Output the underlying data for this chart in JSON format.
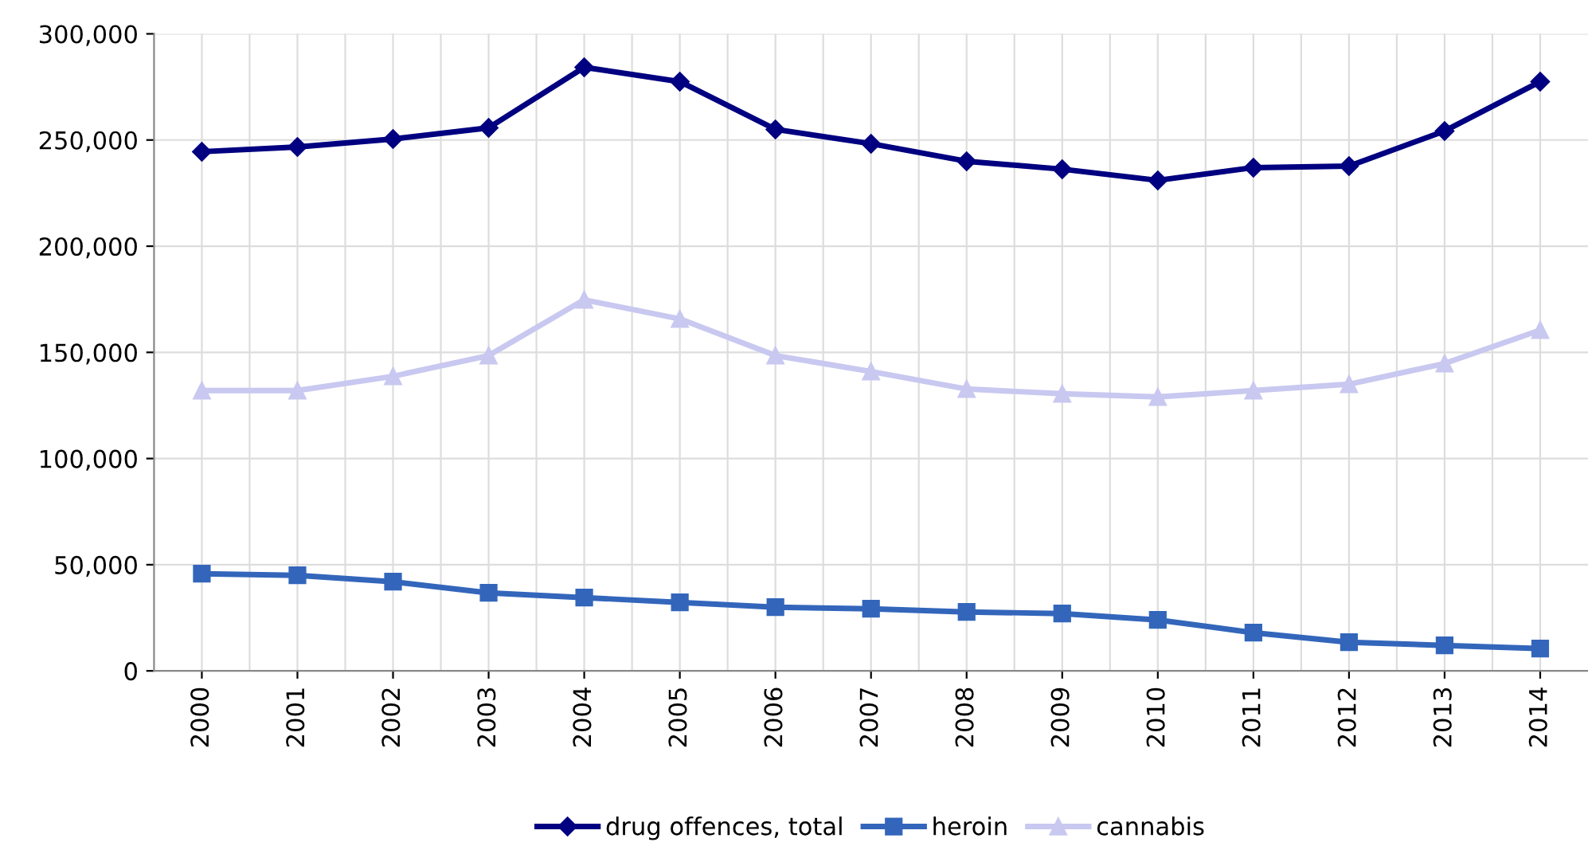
{
  "chart_data": {
    "type": "line",
    "categories": [
      "2000",
      "2001",
      "2002",
      "2003",
      "2004",
      "2005",
      "2006",
      "2007",
      "2008",
      "2009",
      "2010",
      "2011",
      "2012",
      "2013",
      "2014"
    ],
    "series": [
      {
        "name": "drug offences, total",
        "color": "#000080",
        "marker": "diamond",
        "values": [
          244500,
          246750,
          250500,
          255750,
          284250,
          277500,
          255000,
          248250,
          240000,
          236250,
          231000,
          237000,
          237750,
          254250,
          277500
        ]
      },
      {
        "name": "heroin",
        "color": "#3366bb",
        "marker": "square",
        "values": [
          45750,
          45000,
          42000,
          36750,
          34500,
          32250,
          30000,
          29250,
          27750,
          27000,
          24000,
          18000,
          13500,
          12000,
          10500
        ]
      },
      {
        "name": "cannabis",
        "color": "#c8c8f0",
        "marker": "triangle",
        "values": [
          132000,
          132000,
          138750,
          148500,
          174750,
          165750,
          148500,
          141000,
          132750,
          130500,
          129000,
          132000,
          135000,
          144750,
          160500
        ]
      }
    ],
    "ylim": [
      0,
      300000
    ],
    "yticks": [
      0,
      {
        "value": 50000,
        "label": "50,000"
      },
      {
        "value": 100000,
        "label": "100,000"
      },
      {
        "value": 150000,
        "label": "150,000"
      },
      {
        "value": 200000,
        "label": "200,000"
      },
      {
        "value": 250000,
        "label": "250,000"
      },
      {
        "value": 300000,
        "label": "300,000"
      }
    ],
    "grid": true,
    "legend": "bottom",
    "line_style": "solid"
  }
}
